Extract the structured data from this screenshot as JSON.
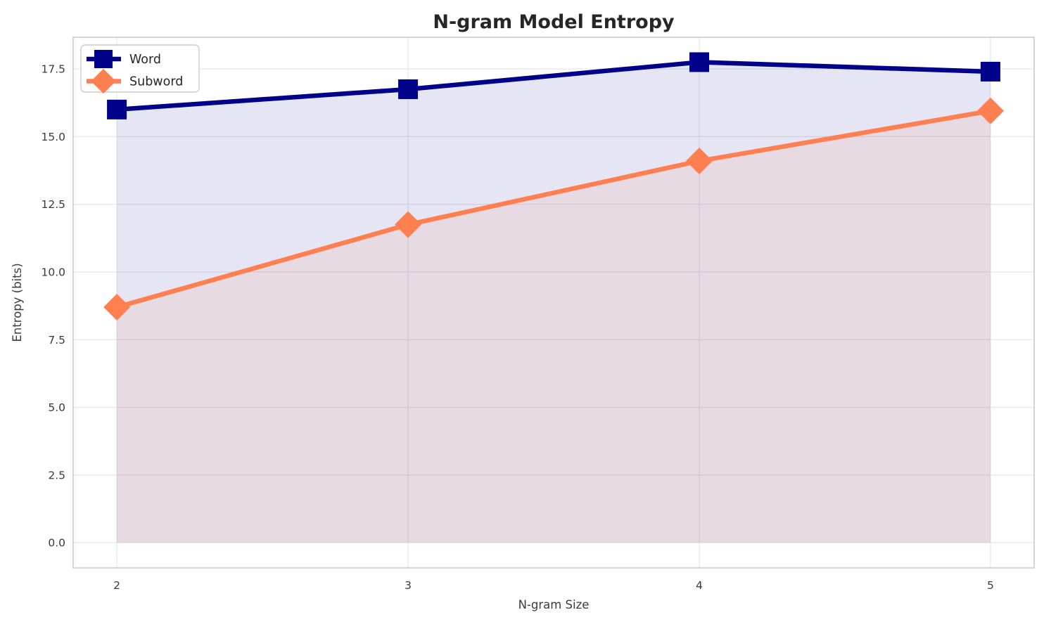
{
  "figure": {
    "title": "N-gram Model Entropy"
  },
  "chart_data": {
    "type": "line",
    "title": "N-gram Model Entropy",
    "xlabel": "N-gram Size",
    "ylabel": "Entropy (bits)",
    "x": [
      2,
      3,
      4,
      5
    ],
    "series": [
      {
        "name": "Word",
        "values": [
          16.0,
          16.75,
          17.75,
          17.4
        ],
        "color": "#00008B",
        "marker": "square",
        "fill_to_zero": true,
        "fill_opacity": 0.1
      },
      {
        "name": "Subword",
        "values": [
          8.7,
          11.75,
          14.1,
          15.95
        ],
        "color": "#FF7F50",
        "marker": "diamond",
        "fill_to_zero": true,
        "fill_opacity": 0.1
      }
    ],
    "xtick_labels": [
      "2",
      "3",
      "4",
      "5"
    ],
    "ytick_values": [
      0.0,
      2.5,
      5.0,
      7.5,
      10.0,
      12.5,
      15.0,
      17.5
    ],
    "ytick_labels": [
      "0.0",
      "2.5",
      "5.0",
      "7.5",
      "10.0",
      "12.5",
      "15.0",
      "17.5"
    ],
    "xlim": [
      1.85,
      5.15
    ],
    "ylim": [
      -0.93,
      18.67
    ],
    "grid": true,
    "legend_position": "upper left",
    "legend_labels": [
      "Word",
      "Subword"
    ],
    "colors": {
      "grid": "#e9e9ec",
      "spine": "#cbcbcb",
      "tick_text": "#3a3a3a",
      "title_text": "#262626",
      "legend_text": "#262626",
      "legend_border": "#cccccc",
      "background": "#ffffff"
    }
  }
}
